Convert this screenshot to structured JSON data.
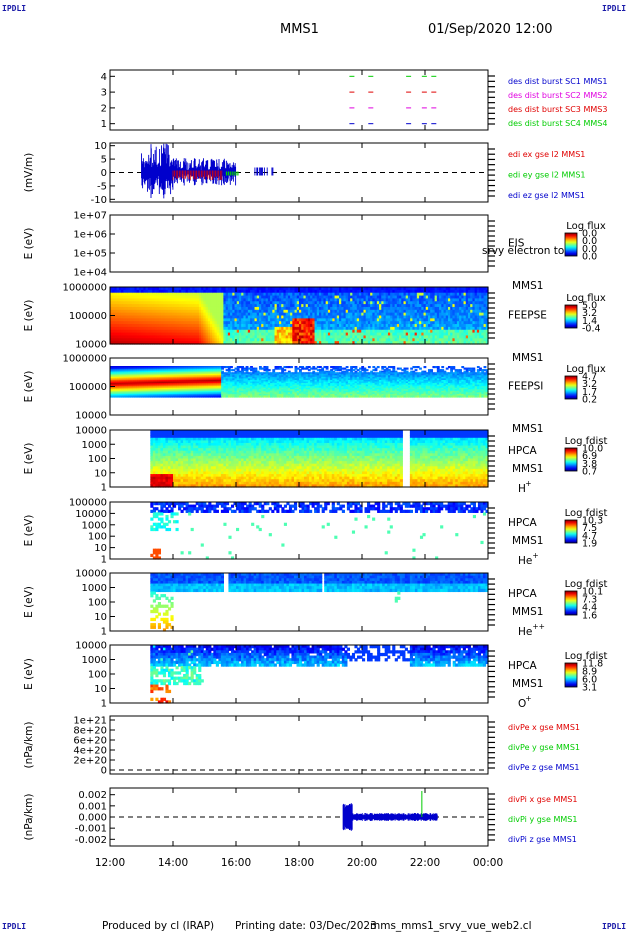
{
  "header": {
    "left_tag": "IPDLI",
    "right_tag": "IPDLI",
    "title": "MMS1",
    "datetime": "01/Sep/2020 12:00",
    "bottom_left_tag": "IPDLI",
    "bottom_right_tag": "IPDLI"
  },
  "footer": {
    "produced": "Produced by cl (IRAP)",
    "printing": "Printing date: 03/Dec/2023",
    "file": "mms_mms1_srvy_vue_web2.cl"
  },
  "colors": {
    "red": "#e00000",
    "green": "#00cc00",
    "blue": "#0000cc",
    "magenta": "#e000e0",
    "dash": "#000000"
  },
  "chart_data": {
    "type": "heatmap",
    "time_axis": {
      "range": [
        "12:00",
        "00:00"
      ],
      "ticks": [
        "12:00",
        "14:00",
        "16:00",
        "18:00",
        "20:00",
        "22:00",
        "00:00"
      ]
    },
    "panels": [
      {
        "id": "burst",
        "type": "line",
        "ylabel": "",
        "yticks": [
          "1",
          "2",
          "3",
          "4"
        ],
        "ylim": [
          0.6,
          4.4
        ],
        "legend": [
          {
            "text": "des dist burst SC1 MMS1",
            "color": "#0000cc"
          },
          {
            "text": "des dist burst SC2 MMS2",
            "color": "#e000e0"
          },
          {
            "text": "des dist burst SC3 MMS3",
            "color": "#e00000"
          },
          {
            "text": "des dist burst SC4 MMS4",
            "color": "#00cc00"
          }
        ],
        "bursts_hours": [
          19.6,
          20.2,
          21.4,
          21.9,
          22.2
        ]
      },
      {
        "id": "edi",
        "type": "line",
        "ylabel": "(mV/m)",
        "yticks": [
          "10",
          "5",
          "0",
          "-5",
          "-10"
        ],
        "ylim": [
          -11,
          11
        ],
        "legend": [
          {
            "text": "edi ex gse l2 MMS1",
            "color": "#e00000"
          },
          {
            "text": "edi ey gse l2 MMS1",
            "color": "#00cc00"
          },
          {
            "text": "edi ez gse l2 MMS1",
            "color": "#0000cc"
          }
        ],
        "data_extent_hours": [
          13.0,
          17.2
        ]
      },
      {
        "id": "eis",
        "type": "heatmap",
        "ylabel": "E (eV)",
        "yticks": [
          "1e+07",
          "1e+06",
          "1e+05",
          "1e+04"
        ],
        "side_label": "EIS",
        "side_label2": "MMS1",
        "overlay_text": "srvy electron to",
        "colorbar_title": "Log flux",
        "colorbar_ticks": [
          "0.0",
          "0.0",
          "0.0",
          "0.0"
        ]
      },
      {
        "id": "feepse",
        "type": "heatmap",
        "ylabel": "E (eV)",
        "yticks": [
          "1000000",
          "100000",
          "10000"
        ],
        "side_label": "FEEPSE",
        "side_label2": "MMS1",
        "colorbar_title": "Log flux",
        "colorbar_ticks": [
          "5.0",
          "3.2",
          "1.4",
          "-0.4"
        ]
      },
      {
        "id": "feepsi",
        "type": "heatmap",
        "ylabel": "E (eV)",
        "yticks": [
          "1000000",
          "100000",
          "10000"
        ],
        "side_label": "FEEPSI",
        "side_label2": "MMS1",
        "colorbar_title": "Log flux",
        "colorbar_ticks": [
          "4.7",
          "3.2",
          "1.7",
          "0.2"
        ]
      },
      {
        "id": "hpca_h",
        "type": "heatmap",
        "ylabel": "E (eV)",
        "yticks": [
          "10000",
          "1000",
          "100",
          "10",
          "1"
        ],
        "side_label": "HPCA",
        "side_label2": "MMS1",
        "species": "H",
        "species_sup": "+",
        "colorbar_title": "Log fdist",
        "colorbar_ticks": [
          "10.0",
          "6.9",
          "3.8",
          "0.7"
        ]
      },
      {
        "id": "hpca_he1",
        "type": "heatmap",
        "ylabel": "E (eV)",
        "yticks": [
          "100000",
          "10000",
          "1000",
          "100",
          "10",
          "1"
        ],
        "side_label": "HPCA",
        "side_label2": "MMS1",
        "species": "He",
        "species_sup": "+",
        "colorbar_title": "Log fdist",
        "colorbar_ticks": [
          "10.3",
          "7.5",
          "4.7",
          "1.9"
        ]
      },
      {
        "id": "hpca_he2",
        "type": "heatmap",
        "ylabel": "E (eV)",
        "yticks": [
          "10000",
          "1000",
          "100",
          "10",
          "1"
        ],
        "side_label": "HPCA",
        "side_label2": "MMS1",
        "species": "He",
        "species_sup": "++",
        "colorbar_title": "Log fdist",
        "colorbar_ticks": [
          "10.1",
          "7.3",
          "4.4",
          "1.6"
        ]
      },
      {
        "id": "hpca_o",
        "type": "heatmap",
        "ylabel": "E (eV)",
        "yticks": [
          "10000",
          "1000",
          "100",
          "10",
          "1"
        ],
        "side_label": "HPCA",
        "side_label2": "MMS1",
        "species": "O",
        "species_sup": "+",
        "colorbar_title": "Log fdist",
        "colorbar_ticks": [
          "11.8",
          "8.9",
          "6.0",
          "3.1"
        ]
      },
      {
        "id": "divpe",
        "type": "line",
        "ylabel": "(nPa/km)",
        "yticks": [
          "1e+21",
          "8e+20",
          "6e+20",
          "4e+20",
          "2e+20",
          "0"
        ],
        "legend": [
          {
            "text": "divPe x gse MMS1",
            "color": "#e00000"
          },
          {
            "text": "divPe y gse MMS1",
            "color": "#00cc00"
          },
          {
            "text": "divPe z gse MMS1",
            "color": "#0000cc"
          }
        ]
      },
      {
        "id": "divpi",
        "type": "line",
        "ylabel": "(nPa/km)",
        "yticks": [
          "0.002",
          "0.001",
          "0.000",
          "-0.001",
          "-0.002"
        ],
        "ylim": [
          -0.0026,
          0.0026
        ],
        "legend": [
          {
            "text": "divPi x gse MMS1",
            "color": "#e00000"
          },
          {
            "text": "divPi y gse MMS1",
            "color": "#00cc00"
          },
          {
            "text": "divPi z gse MMS1",
            "color": "#0000cc"
          }
        ],
        "data_extent_hours": [
          19.4,
          22.4
        ],
        "spike_hour": 21.9
      }
    ]
  }
}
